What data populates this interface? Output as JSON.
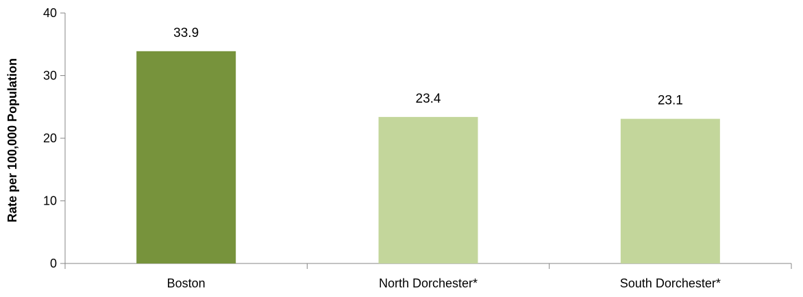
{
  "chart_data": {
    "type": "bar",
    "title": "",
    "xlabel": "",
    "ylabel": "Rate per 100,000 Population",
    "ylim": [
      0,
      40
    ],
    "yticks": [
      0,
      10,
      20,
      30,
      40
    ],
    "grid": false,
    "legend": "none",
    "categories": [
      "Boston",
      "North Dorchester*",
      "South Dorchester*"
    ],
    "values": [
      33.9,
      23.4,
      23.1
    ],
    "value_labels": [
      "33.9",
      "23.4",
      "23.1"
    ],
    "colors": [
      "#77933C",
      "#C3D69B",
      "#C3D69B"
    ],
    "axis_color": "#868686"
  }
}
